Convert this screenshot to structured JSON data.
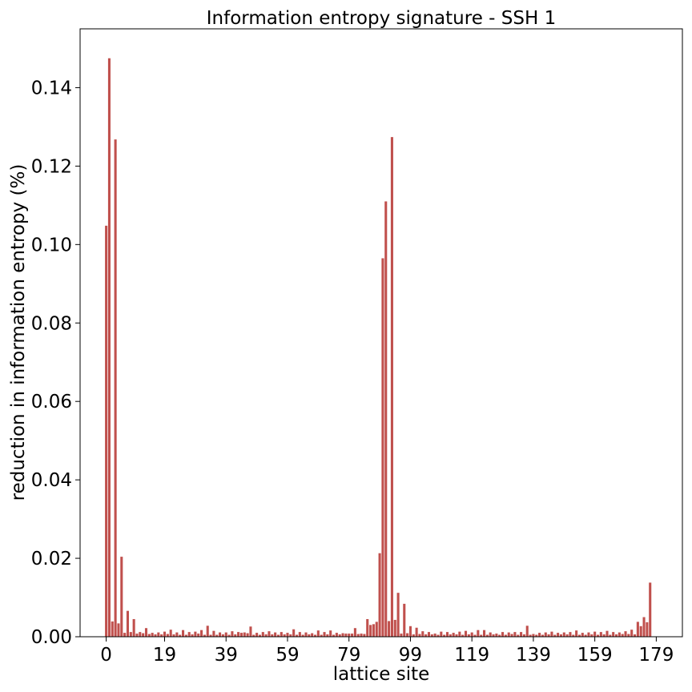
{
  "chart_data": {
    "type": "bar",
    "title": "Information entropy signature - SSH 1",
    "xlabel": "lattice site",
    "ylabel": "reduction in information entropy (%)",
    "x_ticks": [
      0,
      19,
      39,
      59,
      79,
      99,
      119,
      139,
      159,
      179
    ],
    "x_tick_labels": [
      "0",
      "19",
      "39",
      "59",
      "79",
      "99",
      "119",
      "139",
      "159",
      "179"
    ],
    "y_ticks": [
      0,
      0.02,
      0.04,
      0.06,
      0.08,
      0.1,
      0.12,
      0.14
    ],
    "y_tick_labels": [
      "0.00",
      "0.02",
      "0.04",
      "0.06",
      "0.08",
      "0.10",
      "0.12",
      "0.14"
    ],
    "xlim": [
      -8.5,
      187.5
    ],
    "ylim": [
      0,
      0.155
    ],
    "grid": false,
    "bar_color": "#c0504d",
    "x_start": 0,
    "values": [
      0.1048,
      0.1475,
      0.0039,
      0.1268,
      0.0034,
      0.0204,
      0.001,
      0.0066,
      0.0012,
      0.0045,
      0.0008,
      0.0012,
      0.0009,
      0.0022,
      0.0007,
      0.001,
      0.0006,
      0.0011,
      0.0006,
      0.0013,
      0.0007,
      0.0018,
      0.0006,
      0.0011,
      0.0005,
      0.0017,
      0.0005,
      0.0012,
      0.0006,
      0.0013,
      0.0008,
      0.0017,
      0.0005,
      0.0028,
      0.0005,
      0.0015,
      0.0005,
      0.0011,
      0.0006,
      0.0011,
      0.0005,
      0.0014,
      0.0006,
      0.0012,
      0.001,
      0.0011,
      0.0009,
      0.0026,
      0.0005,
      0.001,
      0.0005,
      0.0012,
      0.0006,
      0.0014,
      0.0006,
      0.0011,
      0.0005,
      0.0012,
      0.0006,
      0.001,
      0.0006,
      0.0019,
      0.0005,
      0.0012,
      0.0005,
      0.0011,
      0.0006,
      0.0009,
      0.0005,
      0.0016,
      0.0005,
      0.0012,
      0.0006,
      0.0016,
      0.0005,
      0.001,
      0.0006,
      0.0009,
      0.0008,
      0.0008,
      0.0008,
      0.0022,
      0.0007,
      0.0008,
      0.0007,
      0.0045,
      0.003,
      0.0032,
      0.0038,
      0.0213,
      0.0965,
      0.111,
      0.004,
      0.1274,
      0.0043,
      0.0112,
      0.0008,
      0.0084,
      0.0009,
      0.0027,
      0.0006,
      0.0023,
      0.0007,
      0.0014,
      0.0006,
      0.0012,
      0.0006,
      0.0008,
      0.0005,
      0.0013,
      0.0005,
      0.0012,
      0.0006,
      0.001,
      0.0006,
      0.0013,
      0.0005,
      0.0015,
      0.0006,
      0.0011,
      0.0005,
      0.0017,
      0.0005,
      0.0017,
      0.0005,
      0.0011,
      0.0006,
      0.0008,
      0.0005,
      0.0012,
      0.0005,
      0.0011,
      0.0007,
      0.0012,
      0.0005,
      0.0012,
      0.0006,
      0.0028,
      0.0005,
      0.0007,
      0.0005,
      0.001,
      0.0005,
      0.0011,
      0.0006,
      0.0013,
      0.0005,
      0.001,
      0.0006,
      0.0011,
      0.0006,
      0.0012,
      0.0005,
      0.0016,
      0.0005,
      0.001,
      0.0005,
      0.0011,
      0.0006,
      0.0013,
      0.0005,
      0.0012,
      0.0006,
      0.0015,
      0.0005,
      0.0012,
      0.0006,
      0.0011,
      0.0007,
      0.0014,
      0.0007,
      0.0018,
      0.0006,
      0.0038,
      0.0027,
      0.005,
      0.0037,
      0.0138
    ]
  }
}
